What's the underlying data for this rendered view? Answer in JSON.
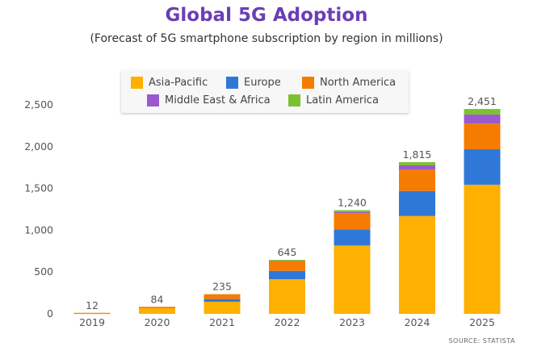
{
  "chart_data": {
    "type": "bar",
    "stacked": true,
    "title": "Global 5G Adoption",
    "subtitle": "(Forecast of 5G smartphone subscription by region in millions)",
    "categories": [
      "2019",
      "2020",
      "2021",
      "2022",
      "2023",
      "2024",
      "2025"
    ],
    "series": [
      {
        "name": "Asia-Pacific",
        "color": "#ffb000",
        "values": [
          8,
          65,
          145,
          415,
          817,
          1170,
          1545
        ]
      },
      {
        "name": "Europe",
        "color": "#2f78d8",
        "values": [
          0,
          0,
          32,
          99,
          193,
          300,
          425
        ]
      },
      {
        "name": "North America",
        "color": "#f57c00",
        "values": [
          4,
          19,
          58,
          125,
          196,
          258,
          305
        ]
      },
      {
        "name": "Middle East & Africa",
        "color": "#9b59d0",
        "values": [
          0,
          0,
          0,
          3,
          14,
          48,
          110
        ]
      },
      {
        "name": "Latin America",
        "color": "#7cc130",
        "values": [
          0,
          0,
          0,
          3,
          20,
          39,
          66
        ]
      }
    ],
    "totals": [
      "12",
      "84",
      "235",
      "645",
      "1,240",
      "1,815",
      "2,451"
    ],
    "yticks": [
      "0",
      "500",
      "1,000",
      "1,500",
      "2,000",
      "2,500"
    ],
    "ylim": [
      0,
      2500
    ],
    "grid": false,
    "legend_position": "top"
  },
  "source": "SOURCE: STATISTA"
}
